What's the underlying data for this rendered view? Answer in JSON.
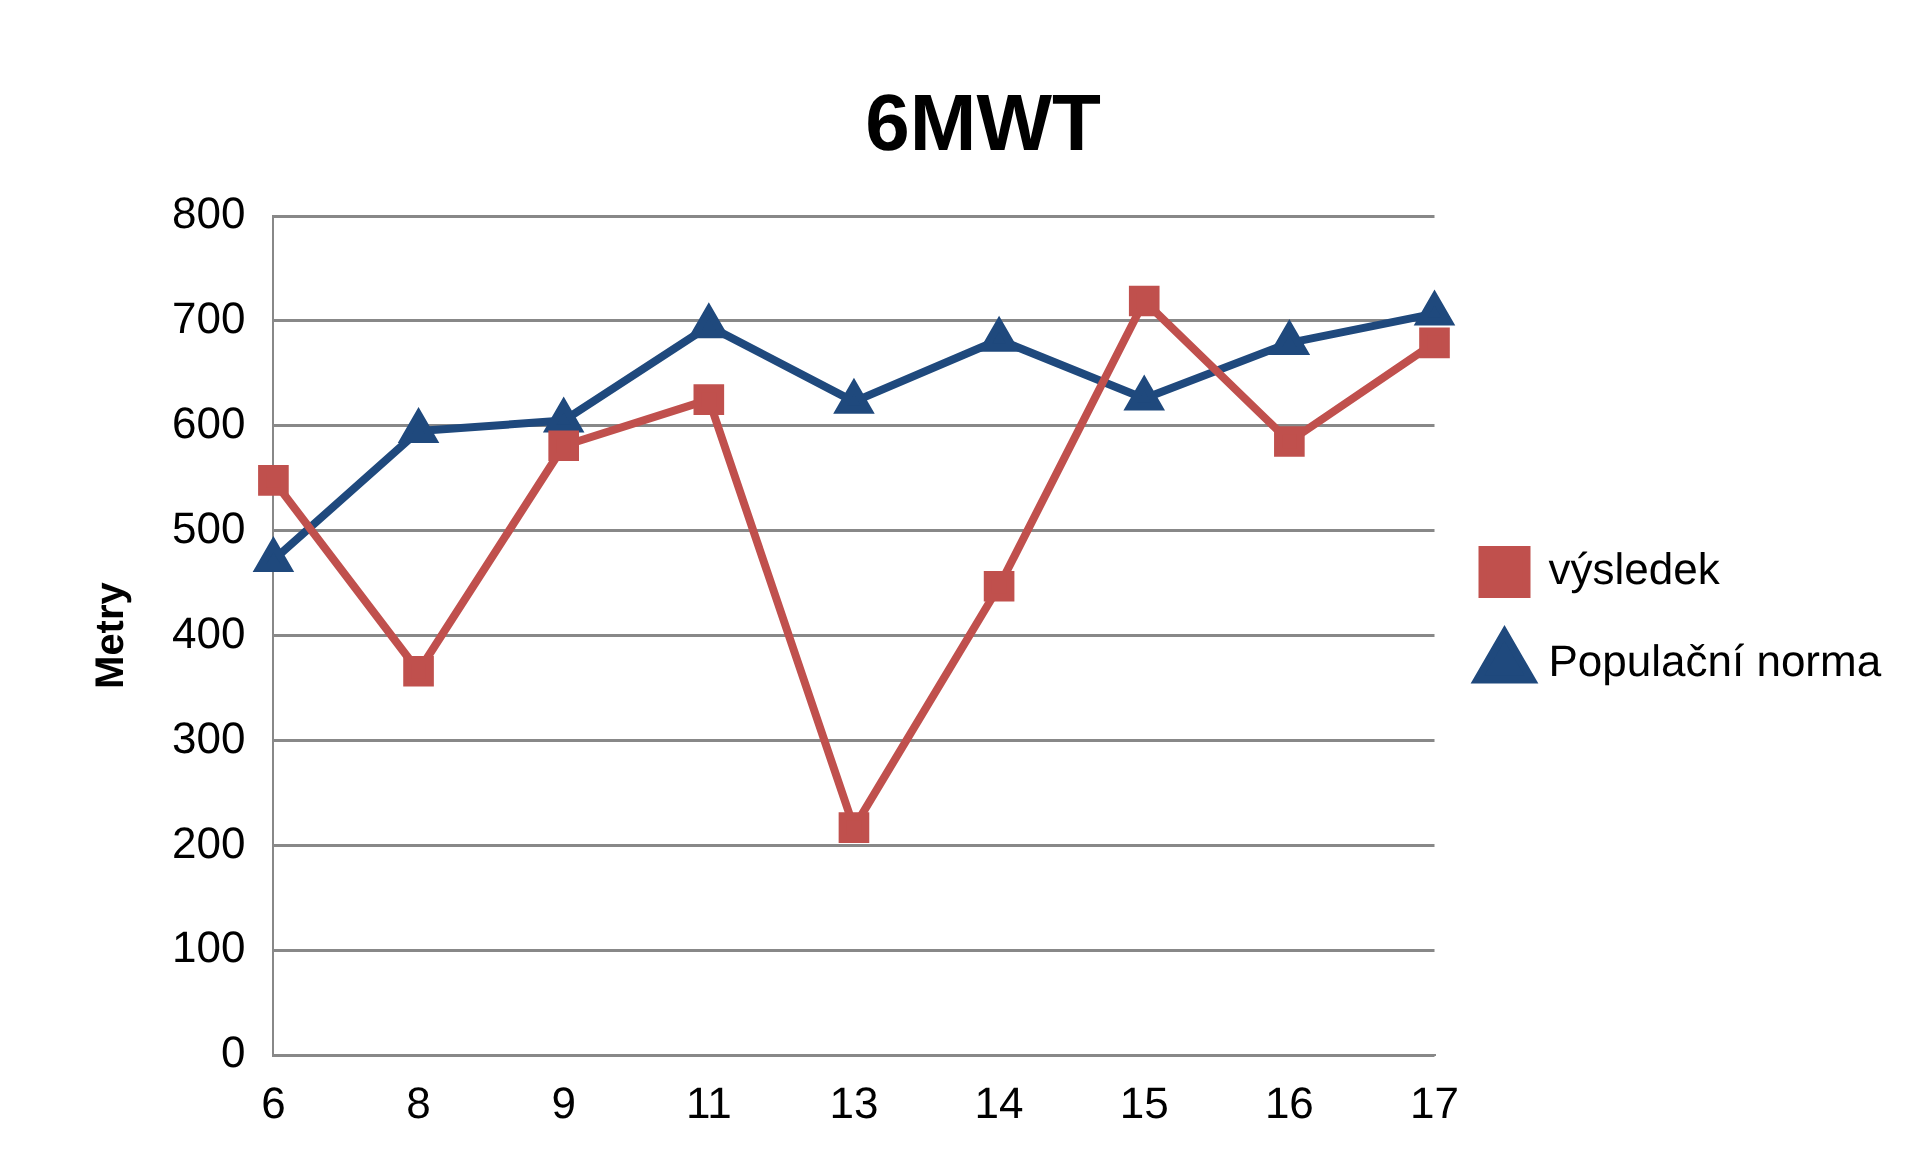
{
  "chart_data": {
    "type": "line",
    "title": "6MWT",
    "ylabel": "Metry",
    "categories": [
      "6",
      "8",
      "9",
      "11",
      "13",
      "14",
      "15",
      "16",
      "17"
    ],
    "series": [
      {
        "name": "výsledek",
        "color": "#c0504d",
        "marker": "square",
        "values": [
          548,
          366,
          581,
          625,
          217,
          447,
          719,
          585,
          679
        ]
      },
      {
        "name": "Populační norma",
        "color": "#1f497d",
        "marker": "triangle",
        "values": [
          472,
          595,
          605,
          695,
          623,
          682,
          626,
          679,
          707
        ]
      }
    ],
    "ylim": [
      0,
      800
    ],
    "yticks": [
      0,
      100,
      200,
      300,
      400,
      500,
      600,
      700,
      800
    ],
    "grid": "y",
    "legend": "right",
    "line_style": "solid"
  }
}
